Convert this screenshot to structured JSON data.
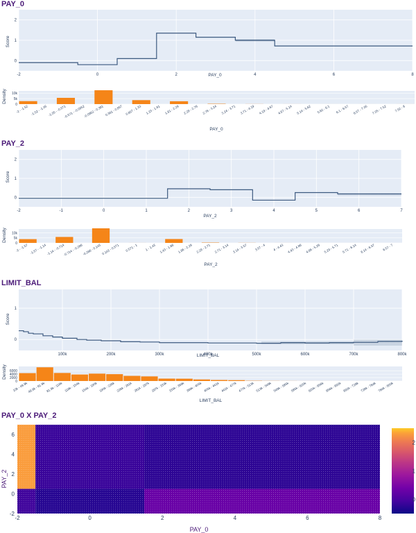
{
  "chart_data": [
    {
      "id": "pay0-score",
      "type": "line",
      "title": "PAY_0",
      "xlabel": "PAY_0",
      "ylabel": "Score",
      "xlim": [
        -2,
        8
      ],
      "ylim": [
        -0.5,
        2.5
      ],
      "xticks": [
        "-2",
        "0",
        "2",
        "4",
        "6",
        "8"
      ],
      "yticks": [
        "0",
        "1",
        "2"
      ],
      "steps": [
        {
          "x0": -2,
          "x1": -0.5,
          "y": -0.1
        },
        {
          "x0": -0.5,
          "x1": 0.5,
          "y": -0.2
        },
        {
          "x0": 0.5,
          "x1": 1.5,
          "y": 0.1
        },
        {
          "x0": 1.5,
          "x1": 2.5,
          "y": 1.35
        },
        {
          "x0": 2.5,
          "x1": 3.5,
          "y": 1.15
        },
        {
          "x0": 3.5,
          "x1": 4.5,
          "y": 1.0
        },
        {
          "x0": 4.5,
          "x1": 8,
          "y": 0.72
        }
      ],
      "band": {
        "x0": 3.5,
        "x1": 4.5
      }
    },
    {
      "id": "pay0-density",
      "type": "bar",
      "ylabel": "Density",
      "xlabel": "PAY_0",
      "ymax": 12000,
      "yticks": [
        "10k",
        "5k",
        "0"
      ],
      "categories": [
        "-2 - -1.52",
        "-1.52 - -1.05",
        "-1.05 - -0.571",
        "-0.571 - -0.0952",
        "-0.0952 - 0.381",
        "0.381 - 0.857",
        "0.857 - 1.33",
        "1.33 - 1.81",
        "1.81 - 2.29",
        "2.29 - 2.76",
        "2.76 - 3.24",
        "3.24 - 3.71",
        "3.71 - 4.19",
        "4.19 - 4.67",
        "4.67 - 5.14",
        "5.14 - 5.62",
        "5.62 - 6.1",
        "6.1 - 6.57",
        "6.57 - 7.05",
        "7.05 - 7.52",
        "7.52 - 8"
      ],
      "values": [
        2700,
        0,
        5700,
        0,
        14700,
        0,
        3600,
        0,
        2600,
        0,
        300,
        0,
        70,
        0,
        25,
        0,
        10,
        0,
        10,
        0,
        20
      ]
    },
    {
      "id": "pay2-score",
      "type": "line",
      "title": "PAY_2",
      "xlabel": "PAY_2",
      "ylabel": "Score",
      "xlim": [
        -2,
        7
      ],
      "ylim": [
        -0.5,
        2.5
      ],
      "xticks": [
        "-2",
        "-1",
        "0",
        "1",
        "2",
        "3",
        "4",
        "5",
        "6",
        "7"
      ],
      "yticks": [
        "0",
        "1",
        "2"
      ],
      "steps": [
        {
          "x0": -2,
          "x1": 1.5,
          "y": -0.05
        },
        {
          "x0": 1.5,
          "x1": 2.5,
          "y": 0.45
        },
        {
          "x0": 2.5,
          "x1": 3.5,
          "y": 0.4
        },
        {
          "x0": 3.5,
          "x1": 4.5,
          "y": -0.15
        },
        {
          "x0": 4.5,
          "x1": 5.5,
          "y": 0.25
        },
        {
          "x0": 5.5,
          "x1": 7,
          "y": 0.18
        }
      ],
      "band": {
        "x0": 5.5,
        "x1": 7
      }
    },
    {
      "id": "pay2-density",
      "type": "bar",
      "ylabel": "Density",
      "xlabel": "PAY_2",
      "ymax": 14000,
      "yticks": [
        "10k",
        "5k",
        "0"
      ],
      "categories": [
        "-2 - -1.57",
        "-1.57 - -1.14",
        "-1.14 - -0.714",
        "-0.714 - -0.286",
        "-0.286 - 0.143",
        "0.143 - 0.571",
        "0.571 - 1",
        "1 - 1.43",
        "1.43 - 1.86",
        "1.86 - 2.29",
        "2.29 - 2.71",
        "2.71 - 3.14",
        "3.14 - 3.57",
        "3.57 - 4",
        "4 - 4.43",
        "4.43 - 4.86",
        "4.86 - 5.29",
        "5.29 - 5.71",
        "5.71 - 6.14",
        "6.14 - 6.57",
        "6.57 - 7"
      ],
      "values": [
        3800,
        0,
        6000,
        0,
        15700,
        0,
        30,
        0,
        3900,
        0,
        320,
        0,
        100,
        0,
        20,
        0,
        10,
        0,
        10,
        0,
        5
      ]
    },
    {
      "id": "limit-score",
      "type": "line",
      "title": "LIMIT_BAL",
      "xlabel": "LIMIT_BAL",
      "ylabel": "Score",
      "xlim": [
        10000,
        800000
      ],
      "ylim": [
        -0.35,
        1.6
      ],
      "xticks": [
        {
          "v": 100000,
          "l": "100k"
        },
        {
          "v": 200000,
          "l": "200k"
        },
        {
          "v": 300000,
          "l": "300k"
        },
        {
          "v": 400000,
          "l": "400k"
        },
        {
          "v": 500000,
          "l": "500k"
        },
        {
          "v": 600000,
          "l": "600k"
        },
        {
          "v": 700000,
          "l": "700k"
        },
        {
          "v": 800000,
          "l": "800k"
        }
      ],
      "yticks": [
        "0",
        "1"
      ],
      "points": [
        [
          10000,
          0.28
        ],
        [
          20000,
          0.25
        ],
        [
          30000,
          0.2
        ],
        [
          40000,
          0.18
        ],
        [
          60000,
          0.12
        ],
        [
          80000,
          0.08
        ],
        [
          100000,
          0.04
        ],
        [
          130000,
          0.0
        ],
        [
          150000,
          -0.02
        ],
        [
          180000,
          -0.04
        ],
        [
          220000,
          -0.07
        ],
        [
          260000,
          -0.08
        ],
        [
          300000,
          -0.1
        ],
        [
          350000,
          -0.1
        ],
        [
          400000,
          -0.11
        ],
        [
          450000,
          -0.11
        ],
        [
          500000,
          -0.12
        ],
        [
          550000,
          -0.1
        ],
        [
          600000,
          -0.11
        ],
        [
          650000,
          -0.1
        ],
        [
          700000,
          -0.09
        ],
        [
          750000,
          -0.06
        ],
        [
          800000,
          -0.04
        ]
      ],
      "bands": [
        {
          "x0": 510000,
          "x1": 700000,
          "h": 0.08
        },
        {
          "x0": 700000,
          "x1": 800000,
          "h": 0.2
        }
      ]
    },
    {
      "id": "limit-density",
      "type": "bar",
      "ylabel": "Density",
      "xlabel": "LIMIT_BAL",
      "ymax": 8500,
      "yticks": [
        "6000",
        "4000",
        "2000",
        "0"
      ],
      "categories": [
        "10k - 49.9k",
        "49.9k - 81.9k",
        "81.9k - 118k",
        "118k - 154k",
        "154k - 190k",
        "190k - 226k",
        "226k - 261k",
        "261k - 297k",
        "297k - 333k",
        "333k - 369k",
        "369k - 405k",
        "405k - 441k",
        "441k - 477k",
        "477k - 513k",
        "513k - 549k",
        "549k - 585k",
        "585k - 620k",
        "620k - 656k",
        "656k - 692k",
        "692k - 728k",
        "728k - 764k",
        "764k - 800k"
      ],
      "values": [
        4600,
        8000,
        4700,
        3800,
        4300,
        4000,
        3000,
        2700,
        1400,
        1350,
        900,
        600,
        500,
        150,
        70,
        40,
        20,
        15,
        10,
        8,
        8,
        5
      ]
    },
    {
      "id": "interaction",
      "type": "heatmap",
      "title": "PAY_0 X PAY_2",
      "xlabel": "PAY_0",
      "ylabel": "PAY_2",
      "xlim": [
        -2,
        8
      ],
      "ylim": [
        -2,
        7
      ],
      "xticks": [
        "-2",
        "0",
        "2",
        "4",
        "6",
        "8"
      ],
      "yticks": [
        "6",
        "4",
        "2",
        "0",
        "-2"
      ],
      "zmin": -0.5,
      "zmax": 2.5,
      "colorbar_ticks": [
        "2",
        "1",
        "0"
      ],
      "cells": [
        {
          "x0": -2,
          "x1": -1.5,
          "y0": 0.5,
          "y1": 7,
          "z": 2.3
        },
        {
          "x0": -1.5,
          "x1": 1.5,
          "y0": 0.5,
          "y1": 7,
          "z": -0.15
        },
        {
          "x0": 1.5,
          "x1": 8,
          "y0": 0.5,
          "y1": 7,
          "z": -0.25
        },
        {
          "x0": -2,
          "x1": -1.5,
          "y0": -2,
          "y1": 0.5,
          "z": -0.1
        },
        {
          "x0": -1.5,
          "x1": 1.5,
          "y0": -2,
          "y1": 0.5,
          "z": -0.3
        },
        {
          "x0": 1.5,
          "x1": 8,
          "y0": -2,
          "y1": 0.5,
          "z": 0.3
        }
      ]
    }
  ],
  "colors": {
    "plot_bg": "#e5ecf6",
    "grid": "#ffffff",
    "line": "#3d5a80",
    "bar": "#f58518",
    "title": "#4b1a78"
  }
}
